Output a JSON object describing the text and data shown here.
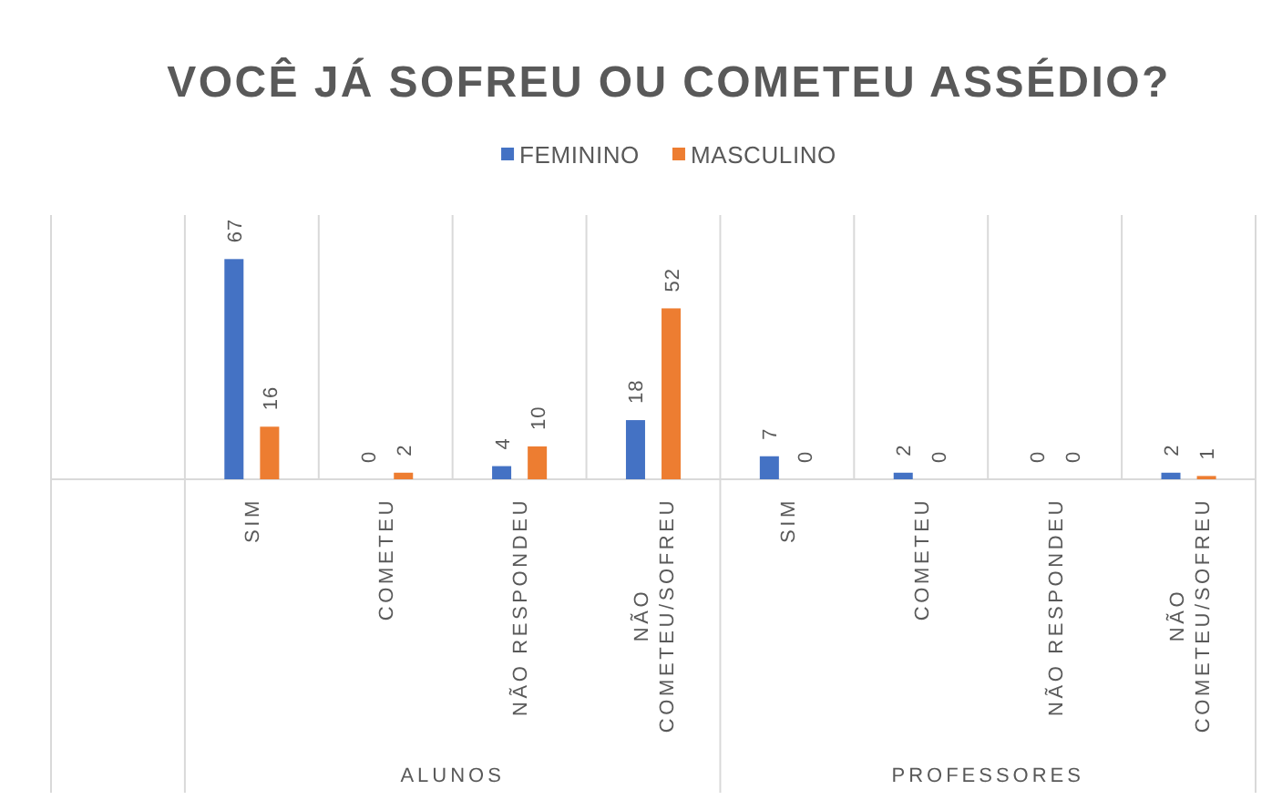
{
  "chart_data": {
    "type": "bar",
    "title": "VOCÊ JÁ SOFREU OU COMETEU ASSÉDIO?",
    "categories": [
      null,
      "SIM",
      "COMETEU",
      "NÃO RESPONDEU",
      "NÃO COMETEU/SOFREU",
      "SIM",
      "COMETEU",
      "NÃO RESPONDEU",
      "NÃO COMETEU/SOFREU"
    ],
    "series": [
      {
        "name": "FEMININO",
        "color": "#4472c4",
        "values": [
          null,
          67,
          0,
          4,
          18,
          7,
          2,
          0,
          2
        ]
      },
      {
        "name": "MASCULINO",
        "color": "#ed7d31",
        "values": [
          null,
          16,
          2,
          10,
          52,
          0,
          0,
          0,
          1
        ]
      }
    ],
    "data_labels": true,
    "legend": "top",
    "grid": "x",
    "annotations": [
      "ALUNOS",
      "PROFESSORES"
    ]
  }
}
